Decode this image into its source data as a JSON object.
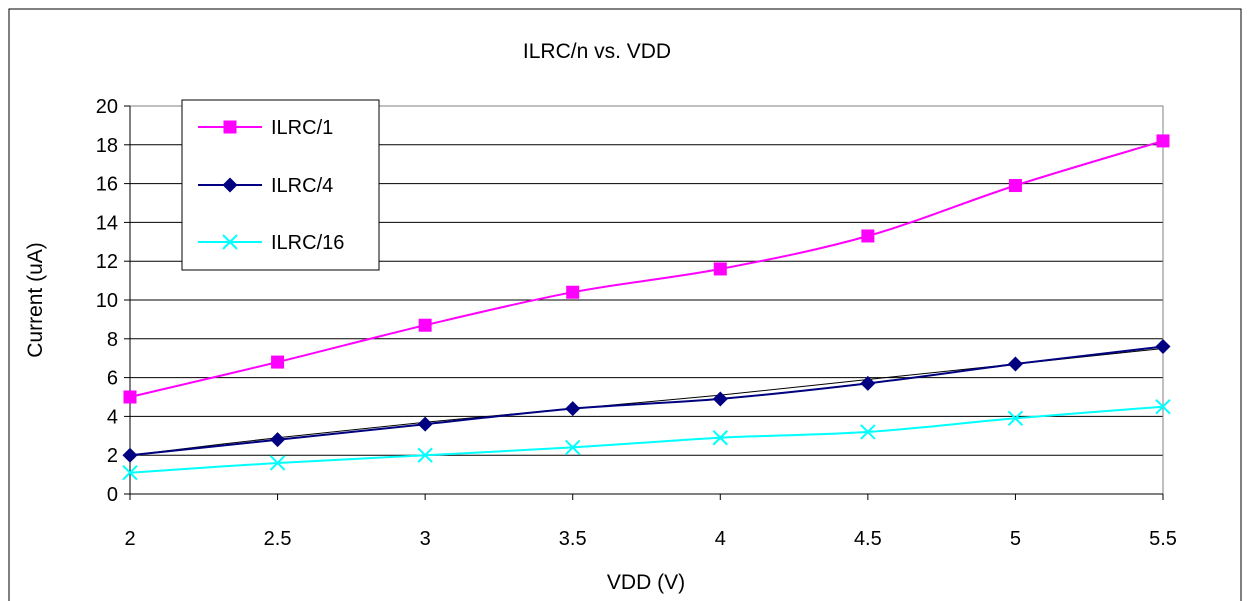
{
  "chart_data": {
    "type": "line",
    "title": "ILRC/n vs. VDD",
    "xlabel": "VDD (V)",
    "ylabel": "Current (uA)",
    "x": [
      2,
      2.5,
      3,
      3.5,
      4,
      4.5,
      5,
      5.5
    ],
    "x_tick_labels": [
      "2",
      "2.5",
      "3",
      "3.5",
      "4",
      "4.5",
      "5",
      "5.5"
    ],
    "ylim": [
      0,
      20
    ],
    "y_ticks": [
      0,
      2,
      4,
      6,
      8,
      10,
      12,
      14,
      16,
      18,
      20
    ],
    "y_tick_labels": [
      "0",
      "2",
      "4",
      "6",
      "8",
      "10",
      "12",
      "14",
      "16",
      "18",
      "20"
    ],
    "grid": "horizontal",
    "legend_position": "top-left",
    "series": [
      {
        "name": "ILRC/1",
        "color": "#ff00ff",
        "marker": "square",
        "values": [
          5.0,
          6.8,
          8.7,
          10.4,
          11.6,
          13.3,
          15.9,
          18.2
        ]
      },
      {
        "name": "ILRC/4",
        "color": "#000080",
        "marker": "diamond",
        "values": [
          2.0,
          2.8,
          3.6,
          4.4,
          4.9,
          5.7,
          6.7,
          7.6
        ]
      },
      {
        "name": "ILRC/16",
        "color": "#00ffff",
        "marker": "x",
        "values": [
          1.1,
          1.6,
          2.0,
          2.4,
          2.9,
          3.2,
          3.9,
          4.5
        ]
      }
    ],
    "trendline": {
      "color": "#000000",
      "values": [
        2.0,
        2.9,
        3.7,
        4.4,
        5.1,
        5.9,
        6.7,
        7.5
      ]
    }
  }
}
